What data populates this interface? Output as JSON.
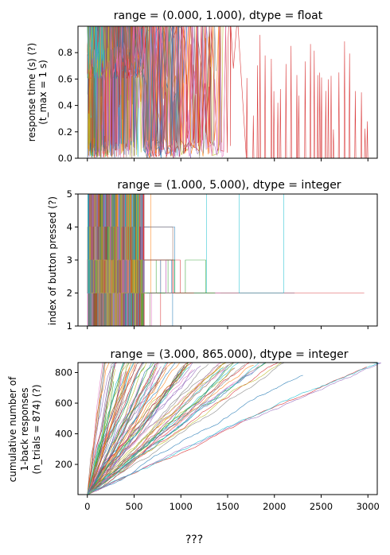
{
  "figure": {
    "suptitle": "",
    "xlabel": "???",
    "sharex_ticks": [
      "0",
      "500",
      "1000",
      "1500",
      "2000",
      "2500",
      "3000"
    ],
    "palette": [
      "#1f77b4",
      "#ff7f0e",
      "#2ca02c",
      "#d62728",
      "#9467bd",
      "#8c564b",
      "#e377c2",
      "#7f7f7f",
      "#bcbd22",
      "#17becf"
    ]
  },
  "chart_data": [
    {
      "type": "line",
      "title": "range = (0.000, 1.000), dtype = float",
      "ylabel_lines": [
        "response time (s) (?)",
        "(t_max = 1 s)"
      ],
      "xlim": [
        -100,
        3100
      ],
      "ylim": [
        0.0,
        1.0
      ],
      "yticks": [
        0.0,
        0.2,
        0.4,
        0.6,
        0.8
      ],
      "ytick_labels": [
        "0.0",
        "0.2",
        "0.4",
        "0.6",
        "0.8"
      ],
      "x_extent": [
        0,
        3000
      ],
      "series_count": 100,
      "description_values": {
        "dense_band": [
          0.6,
          0.85
        ],
        "spike_max": 1.0
      }
    },
    {
      "type": "line",
      "title": "range = (1.000, 5.000), dtype = integer",
      "ylabel_lines": [
        "index of button pressed (?)"
      ],
      "xlim": [
        -100,
        3100
      ],
      "ylim": [
        1,
        5
      ],
      "yticks": [
        1,
        2,
        3,
        4,
        5
      ],
      "ytick_labels": [
        "1",
        "2",
        "3",
        "4",
        "5"
      ],
      "x_extent": [
        0,
        2960
      ],
      "levels": [
        1,
        2,
        3,
        4,
        5
      ],
      "series_count": 100
    },
    {
      "type": "line",
      "title": "range = (3.000, 865.000), dtype = integer",
      "ylabel_lines": [
        "cumulative number of",
        "1-back responses",
        "(n_trials = 874) (?)"
      ],
      "xlim": [
        -100,
        3100
      ],
      "ylim": [
        3,
        865
      ],
      "yticks": [
        200,
        400,
        600,
        800
      ],
      "ytick_labels": [
        "200",
        "400",
        "600",
        "800"
      ],
      "series_end_x": [
        150,
        220,
        260,
        300,
        340,
        380,
        420,
        460,
        500,
        540,
        580,
        620,
        660,
        700,
        750,
        800,
        850,
        900,
        950,
        1000,
        1060,
        1120,
        1180,
        1250,
        1320,
        1400,
        1480,
        1550,
        1650,
        1750,
        1850,
        1950,
        2100,
        2300,
        2980
      ],
      "series_count": 100
    }
  ]
}
